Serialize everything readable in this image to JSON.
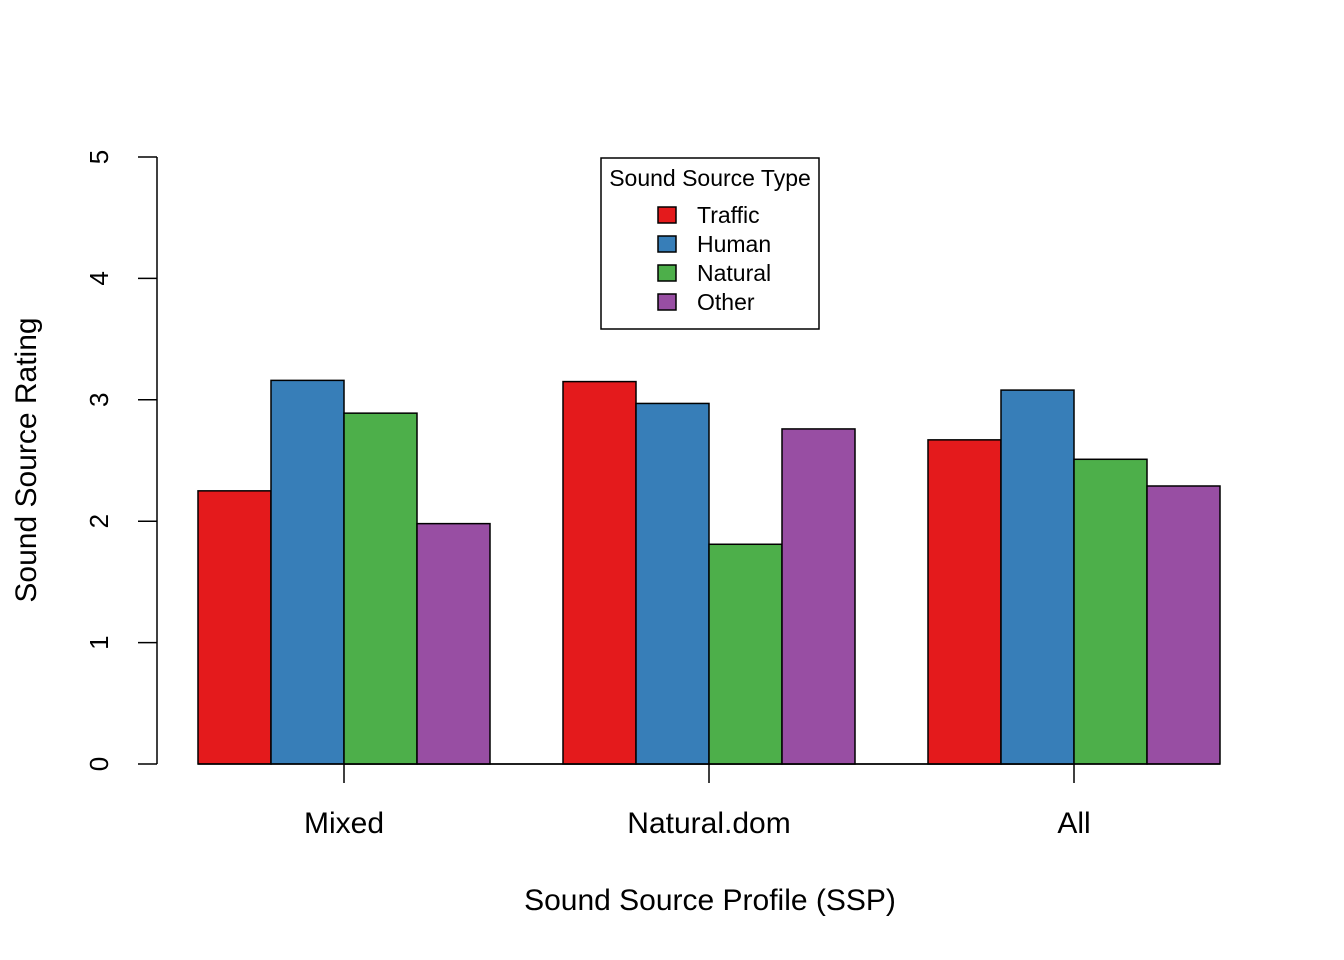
{
  "chart_data": {
    "type": "bar",
    "title": "",
    "xlabel": "Sound Source Profile (SSP)",
    "ylabel": "Sound Source Rating",
    "ylim": [
      0,
      5
    ],
    "yticks": [
      0,
      1,
      2,
      3,
      4,
      5
    ],
    "grid": false,
    "categories": [
      "Mixed",
      "Natural.dom",
      "All"
    ],
    "series": [
      {
        "name": "Traffic",
        "color": "#e41a1c",
        "values": [
          2.25,
          3.15,
          2.67
        ]
      },
      {
        "name": "Human",
        "color": "#377eb8",
        "values": [
          3.16,
          2.97,
          3.08
        ]
      },
      {
        "name": "Natural",
        "color": "#4daf4a",
        "values": [
          2.89,
          1.81,
          2.51
        ]
      },
      {
        "name": "Other",
        "color": "#984ea3",
        "values": [
          1.98,
          2.76,
          2.29
        ]
      }
    ],
    "legend": {
      "title": "Sound Source Type",
      "placement": "top-center"
    }
  }
}
